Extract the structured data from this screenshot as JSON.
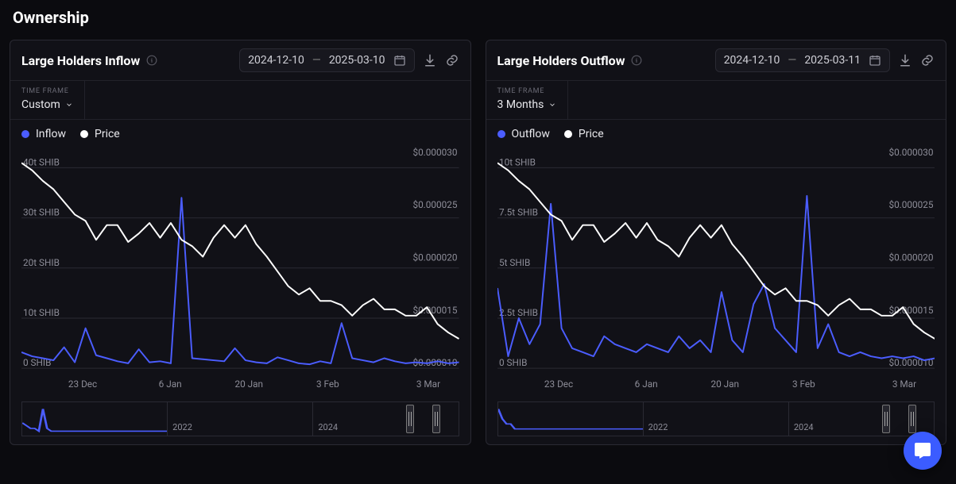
{
  "page": {
    "title": "Ownership"
  },
  "colors": {
    "flow": "#4b5dff",
    "price": "#ffffff",
    "grid": "#2a2a33",
    "axis_text": "#8d8d98",
    "panel_bg": "#111117",
    "page_bg": "#0b0b0f"
  },
  "panels": [
    {
      "id": "inflow",
      "title": "Large Holders Inflow",
      "date_from": "2024-12-10",
      "date_to": "2025-03-10",
      "timeframe_label": "TIME FRAME",
      "timeframe_value": "Custom",
      "legend": [
        {
          "label": "Inflow",
          "color": "#4b5dff"
        },
        {
          "label": "Price",
          "color": "#ffffff"
        }
      ],
      "chart": {
        "type": "line-dual-axis",
        "left_axis": {
          "unit": "SHIB",
          "ticks": [
            {
              "v": 0,
              "label": "0 SHIB"
            },
            {
              "v": 10,
              "label": "10t SHIB"
            },
            {
              "v": 20,
              "label": "20t SHIB"
            },
            {
              "v": 30,
              "label": "30t SHIB"
            },
            {
              "v": 40,
              "label": "40t SHIB"
            }
          ],
          "min": 0,
          "max": 42
        },
        "right_axis": {
          "unit": "USD",
          "ticks": [
            {
              "v": 1e-05,
              "label": "$0.000010"
            },
            {
              "v": 1.5e-05,
              "label": "$0.000015"
            },
            {
              "v": 2e-05,
              "label": "$0.000020"
            },
            {
              "v": 2.5e-05,
              "label": "$0.000025"
            },
            {
              "v": 3e-05,
              "label": "$0.000030"
            }
          ],
          "min": 1e-05,
          "max": 3e-05
        },
        "x_ticks": [
          "23 Dec",
          "6 Jan",
          "20 Jan",
          "3 Feb",
          "3 Mar"
        ],
        "x_tick_positions": [
          0.14,
          0.34,
          0.52,
          0.7,
          0.93
        ],
        "flow_series": [
          3.2,
          2.4,
          2.0,
          1.6,
          4.2,
          1.2,
          8.0,
          2.6,
          2.0,
          1.4,
          1.0,
          3.8,
          1.2,
          1.4,
          1.0,
          34.0,
          2.0,
          1.8,
          1.6,
          1.4,
          4.0,
          1.6,
          1.2,
          1.0,
          2.2,
          1.6,
          1.0,
          0.8,
          1.4,
          1.0,
          9.0,
          2.0,
          1.6,
          1.2,
          2.0,
          1.4,
          1.0,
          1.2,
          1.0,
          1.4,
          1.0,
          1.2
        ],
        "price_series": [
          2.95e-05,
          2.88e-05,
          2.78e-05,
          2.7e-05,
          2.58e-05,
          2.46e-05,
          2.4e-05,
          2.22e-05,
          2.36e-05,
          2.36e-05,
          2.2e-05,
          2.28e-05,
          2.38e-05,
          2.24e-05,
          2.38e-05,
          2.22e-05,
          2.16e-05,
          2.06e-05,
          2.24e-05,
          2.36e-05,
          2.24e-05,
          2.36e-05,
          2.18e-05,
          2.06e-05,
          1.92e-05,
          1.78e-05,
          1.7e-05,
          1.76e-05,
          1.64e-05,
          1.64e-05,
          1.6e-05,
          1.5e-05,
          1.6e-05,
          1.66e-05,
          1.56e-05,
          1.56e-05,
          1.5e-05,
          1.5e-05,
          1.58e-05,
          1.42e-05,
          1.34e-05,
          1.28e-05
        ]
      },
      "mini": {
        "years": [
          "",
          "2022",
          "2024"
        ],
        "series": [
          4,
          3,
          2,
          2,
          1,
          9,
          2,
          1,
          1,
          1,
          1,
          1,
          1,
          1,
          1,
          1,
          1,
          1,
          1,
          1,
          1,
          1,
          1,
          1,
          1,
          1,
          1,
          1,
          1,
          1,
          1,
          1,
          1,
          1,
          1,
          1
        ],
        "handle_left_pct": 88,
        "handle_right_pct": 94
      }
    },
    {
      "id": "outflow",
      "title": "Large Holders Outflow",
      "date_from": "2024-12-10",
      "date_to": "2025-03-11",
      "timeframe_label": "TIME FRAME",
      "timeframe_value": "3 Months",
      "legend": [
        {
          "label": "Outflow",
          "color": "#4b5dff"
        },
        {
          "label": "Price",
          "color": "#ffffff"
        }
      ],
      "chart": {
        "type": "line-dual-axis",
        "left_axis": {
          "unit": "SHIB",
          "ticks": [
            {
              "v": 0,
              "label": "0 SHIB"
            },
            {
              "v": 2.5,
              "label": "2.5t SHIB"
            },
            {
              "v": 5,
              "label": "5t SHIB"
            },
            {
              "v": 7.5,
              "label": "7.5t SHIB"
            },
            {
              "v": 10,
              "label": "10t SHIB"
            }
          ],
          "min": 0,
          "max": 10.5
        },
        "right_axis": {
          "unit": "USD",
          "ticks": [
            {
              "v": 1e-05,
              "label": "$0.000010"
            },
            {
              "v": 1.5e-05,
              "label": "$0.000015"
            },
            {
              "v": 2e-05,
              "label": "$0.000020"
            },
            {
              "v": 2.5e-05,
              "label": "$0.000025"
            },
            {
              "v": 3e-05,
              "label": "$0.000030"
            }
          ],
          "min": 1e-05,
          "max": 3e-05
        },
        "x_ticks": [
          "23 Dec",
          "6 Jan",
          "20 Jan",
          "3 Feb",
          "3 Mar"
        ],
        "x_tick_positions": [
          0.14,
          0.34,
          0.52,
          0.7,
          0.93
        ],
        "flow_series": [
          4.0,
          0.6,
          2.5,
          1.2,
          2.2,
          8.2,
          2.0,
          1.0,
          0.8,
          0.6,
          1.6,
          1.2,
          1.0,
          0.8,
          1.2,
          1.0,
          0.8,
          1.6,
          1.0,
          1.4,
          0.8,
          3.8,
          1.4,
          0.8,
          3.2,
          4.2,
          2.0,
          1.4,
          0.8,
          8.6,
          1.0,
          2.2,
          0.8,
          0.6,
          0.8,
          0.6,
          0.5,
          0.6,
          0.5,
          0.6,
          0.4,
          0.5
        ],
        "price_series": [
          2.95e-05,
          2.88e-05,
          2.78e-05,
          2.7e-05,
          2.58e-05,
          2.46e-05,
          2.4e-05,
          2.22e-05,
          2.36e-05,
          2.36e-05,
          2.2e-05,
          2.28e-05,
          2.38e-05,
          2.24e-05,
          2.38e-05,
          2.22e-05,
          2.16e-05,
          2.06e-05,
          2.24e-05,
          2.36e-05,
          2.24e-05,
          2.36e-05,
          2.18e-05,
          2.06e-05,
          1.92e-05,
          1.78e-05,
          1.7e-05,
          1.76e-05,
          1.64e-05,
          1.64e-05,
          1.6e-05,
          1.5e-05,
          1.6e-05,
          1.66e-05,
          1.56e-05,
          1.56e-05,
          1.5e-05,
          1.5e-05,
          1.58e-05,
          1.42e-05,
          1.34e-05,
          1.28e-05
        ]
      },
      "mini": {
        "years": [
          "",
          "2022",
          "2024"
        ],
        "series": [
          5,
          3,
          2,
          2,
          1,
          1,
          1,
          1,
          1,
          1,
          1,
          1,
          1,
          1,
          1,
          1,
          1,
          1,
          1,
          1,
          1,
          1,
          1,
          1,
          1,
          1,
          1,
          1,
          1,
          1,
          1,
          1,
          1,
          1,
          1,
          1
        ],
        "handle_left_pct": 88,
        "handle_right_pct": 94
      }
    }
  ]
}
